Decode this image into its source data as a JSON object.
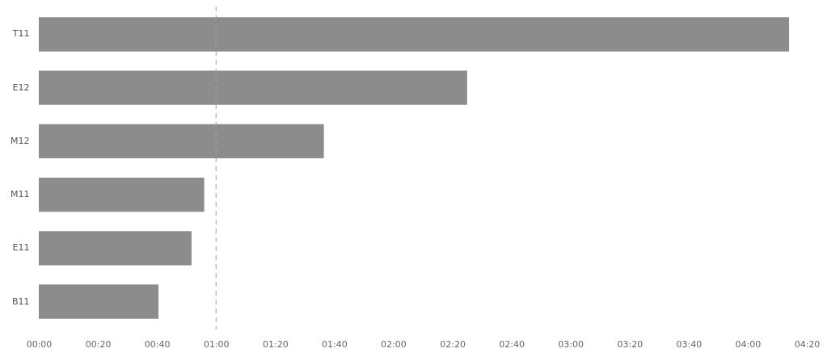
{
  "chart_data": {
    "type": "bar",
    "orientation": "horizontal",
    "categories": [
      "T11",
      "E12",
      "M12",
      "M11",
      "E11",
      "B11"
    ],
    "values": [
      254,
      145,
      96.5,
      56,
      51.7,
      40.5
    ],
    "color": "#8c8c8c",
    "xlim": [
      0,
      260
    ],
    "xticks": [
      {
        "value": 0,
        "label": "00:00"
      },
      {
        "value": 20,
        "label": "00:20"
      },
      {
        "value": 40,
        "label": "00:40"
      },
      {
        "value": 60,
        "label": "01:00"
      },
      {
        "value": 80,
        "label": "01:20"
      },
      {
        "value": 100,
        "label": "01:40"
      },
      {
        "value": 120,
        "label": "02:00"
      },
      {
        "value": 140,
        "label": "02:20"
      },
      {
        "value": 160,
        "label": "02:40"
      },
      {
        "value": 180,
        "label": "03:00"
      },
      {
        "value": 200,
        "label": "03:20"
      },
      {
        "value": 220,
        "label": "03:40"
      },
      {
        "value": 240,
        "label": "04:00"
      },
      {
        "value": 260,
        "label": "04:20"
      }
    ],
    "ref_lines": [
      {
        "axis": "x",
        "value": 60,
        "color": "#a0a0a0",
        "line_style": "dashed"
      }
    ],
    "grid": false
  }
}
